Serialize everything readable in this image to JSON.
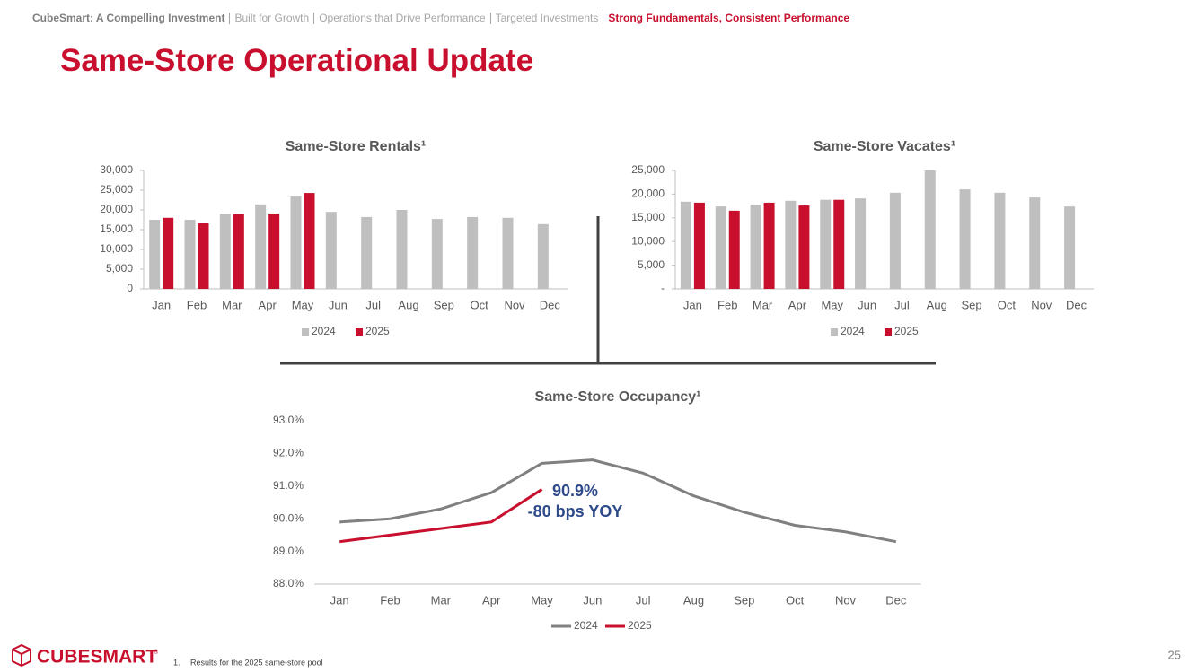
{
  "header": {
    "nav": [
      "CubeSmart: A Compelling Investment",
      "Built for Growth",
      "Operations that Drive Performance",
      "Targeted Investments",
      "Strong Fundamentals, Consistent Performance"
    ],
    "title": "Same-Store Operational Update"
  },
  "chart_data": [
    {
      "type": "bar",
      "title": "Same-Store Rentals¹",
      "categories": [
        "Jan",
        "Feb",
        "Mar",
        "Apr",
        "May",
        "Jun",
        "Jul",
        "Aug",
        "Sep",
        "Oct",
        "Nov",
        "Dec"
      ],
      "series": [
        {
          "name": "2024",
          "color": "#bfbfbf",
          "values": [
            17500,
            17500,
            19100,
            21400,
            23400,
            19500,
            18200,
            20000,
            17700,
            18200,
            18000,
            16400
          ]
        },
        {
          "name": "2025",
          "color": "#c8102e",
          "values": [
            18000,
            16600,
            18900,
            19100,
            24300,
            null,
            null,
            null,
            null,
            null,
            null,
            null
          ]
        }
      ],
      "ylim": [
        0,
        30000
      ],
      "yticks": [
        0,
        {
          "value": 5000,
          "label": "5,000"
        },
        {
          "value": 10000,
          "label": "10,000"
        },
        {
          "value": 15000,
          "label": "15,000"
        },
        {
          "value": 20000,
          "label": "20,000"
        },
        {
          "value": 25000,
          "label": "25,000"
        },
        {
          "value": 30000,
          "label": "30,000"
        }
      ],
      "legend": "bottom"
    },
    {
      "type": "bar",
      "title": "Same-Store Vacates¹",
      "categories": [
        "Jan",
        "Feb",
        "Mar",
        "Apr",
        "May",
        "Jun",
        "Jul",
        "Aug",
        "Sep",
        "Oct",
        "Nov",
        "Dec"
      ],
      "series": [
        {
          "name": "2024",
          "color": "#bfbfbf",
          "values": [
            18400,
            17400,
            17800,
            18600,
            18800,
            19100,
            20300,
            25000,
            21000,
            20300,
            19300,
            17400
          ]
        },
        {
          "name": "2025",
          "color": "#c8102e",
          "values": [
            18200,
            16500,
            18200,
            17600,
            18800,
            null,
            null,
            null,
            null,
            null,
            null,
            null
          ]
        }
      ],
      "ylim": [
        0,
        25000
      ],
      "yticks": [
        {
          "value": 0,
          "label": "-"
        },
        {
          "value": 5000,
          "label": "5,000"
        },
        {
          "value": 10000,
          "label": "10,000"
        },
        {
          "value": 15000,
          "label": "15,000"
        },
        {
          "value": 20000,
          "label": "20,000"
        },
        {
          "value": 25000,
          "label": "25,000"
        }
      ],
      "legend": "bottom"
    },
    {
      "type": "line",
      "title": "Same-Store Occupancy¹",
      "categories": [
        "Jan",
        "Feb",
        "Mar",
        "Apr",
        "May",
        "Jun",
        "Jul",
        "Aug",
        "Sep",
        "Oct",
        "Nov",
        "Dec"
      ],
      "series": [
        {
          "name": "2024",
          "color": "#808080",
          "values": [
            89.9,
            90.0,
            90.3,
            90.8,
            91.7,
            91.8,
            91.4,
            90.7,
            90.2,
            89.8,
            89.6,
            89.3
          ]
        },
        {
          "name": "2025",
          "color": "#c8102e",
          "values": [
            89.3,
            89.5,
            89.7,
            89.9,
            90.9,
            null,
            null,
            null,
            null,
            null,
            null,
            null
          ]
        }
      ],
      "ylim": [
        88,
        93
      ],
      "yticks": [
        {
          "value": 88,
          "label": "88.0%"
        },
        {
          "value": 89,
          "label": "89.0%"
        },
        {
          "value": 90,
          "label": "90.0%"
        },
        {
          "value": 91,
          "label": "91.0%"
        },
        {
          "value": 92,
          "label": "92.0%"
        },
        {
          "value": 93,
          "label": "93.0%"
        }
      ],
      "annotations": [
        "90.9%",
        "-80 bps YOY"
      ],
      "legend": "bottom"
    }
  ],
  "footer": {
    "logo": "CubeSmart",
    "logo_mark": "®",
    "footnote_number": "1.",
    "footnote": "Results for the 2025 same-store pool",
    "page_number": "25"
  }
}
